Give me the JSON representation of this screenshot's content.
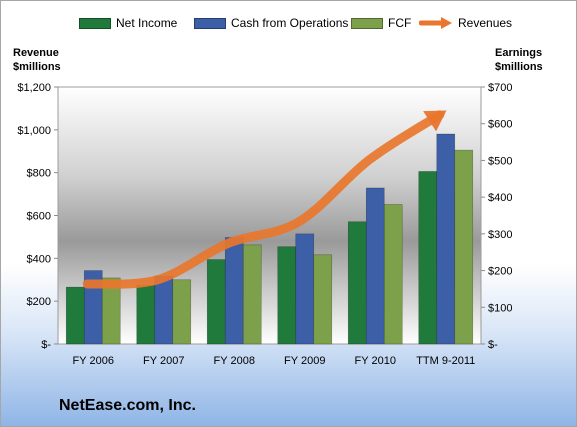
{
  "chart_data": {
    "type": "bar",
    "categories": [
      "FY 2006",
      "FY 2007",
      "FY 2008",
      "FY 2009",
      "FY 2010",
      "TTM 9-2011"
    ],
    "series": [
      {
        "name": "Net Income",
        "axis": "right",
        "color": "#1f7a3c",
        "values": [
          155,
          160,
          230,
          265,
          333,
          470
        ]
      },
      {
        "name": "Cash from Operations",
        "axis": "right",
        "color": "#3d5fa8",
        "values": [
          200,
          185,
          290,
          300,
          425,
          572
        ]
      },
      {
        "name": "FCF",
        "axis": "right",
        "color": "#7da04a",
        "values": [
          180,
          175,
          270,
          243,
          380,
          528
        ]
      },
      {
        "name": "Revenues",
        "axis": "left",
        "type": "line",
        "color": "#e8762c",
        "values": [
          280,
          300,
          470,
          570,
          860,
          1070
        ]
      }
    ],
    "left_axis": {
      "title_line1": "Revenue",
      "title_line2": "$millions",
      "min": 0,
      "max": 1200,
      "tick_labels": [
        "$-",
        "$200",
        "$400",
        "$600",
        "$800",
        "$1,000",
        "$1,200"
      ]
    },
    "right_axis": {
      "title_line1": "Earnings",
      "title_line2": "$millions",
      "min": 0,
      "max": 700,
      "tick_labels": [
        "$-",
        "$100",
        "$200",
        "$300",
        "$400",
        "$500",
        "$600",
        "$700"
      ]
    },
    "legend_position": "top",
    "grid": false,
    "title": "NetEase.com, Inc."
  }
}
